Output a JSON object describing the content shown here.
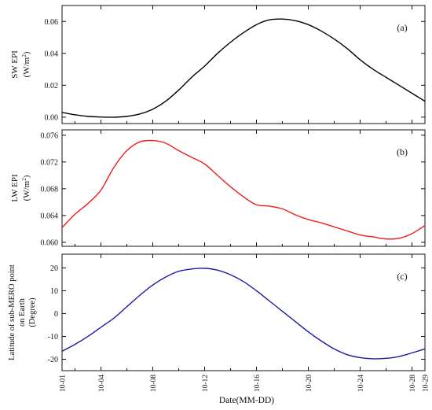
{
  "chart_data": [
    {
      "type": "line",
      "panel_label": "(a)",
      "ylabel": "SW EPI",
      "ylabel_unit": "(W/m",
      "ylabel_unit_sup": "2",
      "ylabel_unit_close": ")",
      "ylim": [
        -0.004,
        0.07
      ],
      "yticks": [
        0.0,
        0.02,
        0.04,
        0.06
      ],
      "ytick_labels": [
        "0.00",
        "0.02",
        "0.04",
        "0.06"
      ],
      "series": [
        {
          "color": "#000000",
          "x": [
            "10-01",
            "10-02",
            "10-03",
            "10-04",
            "10-05",
            "10-06",
            "10-07",
            "10-08",
            "10-09",
            "10-10",
            "10-11",
            "10-12",
            "10-13",
            "10-14",
            "10-15",
            "10-16",
            "10-17",
            "10-18",
            "10-19",
            "10-20",
            "10-21",
            "10-22",
            "10-23",
            "10-24",
            "10-25",
            "10-26",
            "10-27",
            "10-28",
            "10-29"
          ],
          "values": [
            0.003,
            0.0015,
            0.0005,
            0.0001,
            0.0,
            0.0005,
            0.002,
            0.005,
            0.01,
            0.017,
            0.025,
            0.032,
            0.04,
            0.047,
            0.053,
            0.058,
            0.061,
            0.0615,
            0.0605,
            0.058,
            0.054,
            0.049,
            0.043,
            0.036,
            0.03,
            0.025,
            0.02,
            0.015,
            0.01
          ]
        }
      ]
    },
    {
      "type": "line",
      "panel_label": "(b)",
      "ylabel": "LW EPI",
      "ylabel_unit": "(W/m",
      "ylabel_unit_sup": "2",
      "ylabel_unit_close": ")",
      "ylim": [
        0.0594,
        0.0768
      ],
      "yticks": [
        0.06,
        0.064,
        0.068,
        0.072,
        0.076
      ],
      "ytick_labels": [
        "0.060",
        "0.064",
        "0.068",
        "0.072",
        "0.076"
      ],
      "series": [
        {
          "color": "#ee1c1c",
          "x": [
            "10-01",
            "10-02",
            "10-03",
            "10-04",
            "10-05",
            "10-06",
            "10-07",
            "10-08",
            "10-09",
            "10-10",
            "10-11",
            "10-12",
            "10-13",
            "10-14",
            "10-15",
            "10-16",
            "10-17",
            "10-18",
            "10-19",
            "10-20",
            "10-21",
            "10-22",
            "10-23",
            "10-24",
            "10-25",
            "10-26",
            "10-27",
            "10-28",
            "10-29"
          ],
          "values": [
            0.0622,
            0.0642,
            0.0658,
            0.0678,
            0.0712,
            0.0737,
            0.075,
            0.0752,
            0.0748,
            0.0737,
            0.0727,
            0.0717,
            0.07,
            0.0683,
            0.0668,
            0.0656,
            0.0654,
            0.065,
            0.0641,
            0.0634,
            0.0629,
            0.0623,
            0.0617,
            0.0611,
            0.0608,
            0.0605,
            0.0606,
            0.0613,
            0.0625
          ]
        }
      ]
    },
    {
      "type": "line",
      "panel_label": "(c)",
      "ylabel_lines": [
        "Latitude of sub-MERO point",
        "on Earth",
        "(Degree)"
      ],
      "ylim": [
        -25,
        26
      ],
      "yticks": [
        -20,
        -10,
        0,
        10,
        20
      ],
      "ytick_labels": [
        "-20",
        "-10",
        "0",
        "10",
        "20"
      ],
      "xlabel": "Date(MM-DD)",
      "series": [
        {
          "color": "#1a1aa6",
          "x": [
            "10-01",
            "10-02",
            "10-03",
            "10-04",
            "10-05",
            "10-06",
            "10-07",
            "10-08",
            "10-09",
            "10-10",
            "10-11",
            "10-12",
            "10-13",
            "10-14",
            "10-15",
            "10-16",
            "10-17",
            "10-18",
            "10-19",
            "10-20",
            "10-21",
            "10-22",
            "10-23",
            "10-24",
            "10-25",
            "10-26",
            "10-27",
            "10-28",
            "10-29"
          ],
          "values": [
            -16.5,
            -13.5,
            -10,
            -6,
            -2,
            3,
            8,
            12.5,
            16,
            18.5,
            19.5,
            19.8,
            19,
            17,
            14,
            10,
            5.5,
            1,
            -3.5,
            -8,
            -12,
            -15.5,
            -18,
            -19.3,
            -19.8,
            -19.6,
            -18.8,
            -17.2,
            -15.5
          ]
        }
      ]
    }
  ],
  "x_axis": {
    "tick_labels": [
      "10-01",
      "10-04",
      "10-08",
      "10-12",
      "10-16",
      "10-20",
      "10-24",
      "10-28",
      "10-29"
    ],
    "tick_positions": [
      "10-01",
      "10-04",
      "10-08",
      "10-12",
      "10-16",
      "10-20",
      "10-24",
      "10-28",
      "10-29"
    ],
    "minor_ticks": [
      "10-02",
      "10-06",
      "10-10",
      "10-14",
      "10-18",
      "10-22",
      "10-26"
    ]
  }
}
